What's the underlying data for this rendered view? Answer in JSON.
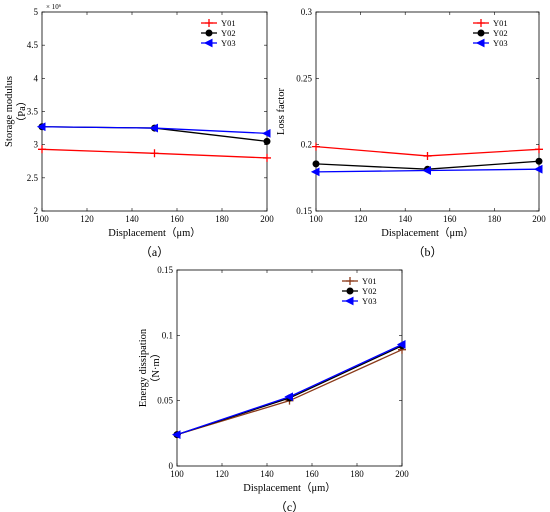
{
  "chart_data": [
    {
      "type": "line",
      "caption": "（a）",
      "xlabel": "Displacement（μm）",
      "ylabel": "Storage modulus",
      "ylabel_unit": "（Pa）",
      "y_exponent": "× 10⁶",
      "xlim": [
        100,
        200
      ],
      "ylim": [
        2,
        5
      ],
      "xticks": [
        "100",
        "120",
        "140",
        "160",
        "180",
        "200"
      ],
      "yticks": [
        "2",
        "2.5",
        "3",
        "3.5",
        "4",
        "4.5",
        "5"
      ],
      "x": [
        100,
        150,
        200
      ],
      "series": [
        {
          "name": "Y01",
          "color": "#ff0000",
          "marker": "plus",
          "values": [
            2.93,
            2.87,
            2.8
          ]
        },
        {
          "name": "Y02",
          "color": "#000000",
          "marker": "circle",
          "values": [
            3.27,
            3.25,
            3.05
          ]
        },
        {
          "name": "Y03",
          "color": "#0000ff",
          "marker": "triangle-left",
          "values": [
            3.27,
            3.25,
            3.17
          ]
        }
      ],
      "legend": "top-right",
      "grid": false
    },
    {
      "type": "line",
      "caption": "（b）",
      "xlabel": "Displacement（μm）",
      "ylabel": "Loss factor",
      "xlim": [
        100,
        200
      ],
      "ylim": [
        0.15,
        0.3
      ],
      "xticks": [
        "100",
        "120",
        "140",
        "160",
        "180",
        "200"
      ],
      "yticks": [
        "0.15",
        "0.2",
        "0.25",
        "0.3"
      ],
      "x": [
        100,
        150,
        200
      ],
      "series": [
        {
          "name": "Y01",
          "color": "#ff0000",
          "marker": "plus",
          "values": [
            0.1985,
            0.1915,
            0.1965
          ]
        },
        {
          "name": "Y02",
          "color": "#000000",
          "marker": "circle",
          "values": [
            0.1855,
            0.1815,
            0.1875
          ]
        },
        {
          "name": "Y03",
          "color": "#0000ff",
          "marker": "triangle-left",
          "values": [
            0.1795,
            0.1805,
            0.1815
          ]
        }
      ],
      "legend": "top-right",
      "grid": false
    },
    {
      "type": "line",
      "caption": "（c）",
      "xlabel": "Displacement（μm）",
      "ylabel": "Energy dissipation",
      "ylabel_unit": "（N·m）",
      "xlim": [
        100,
        200
      ],
      "ylim": [
        0,
        0.15
      ],
      "xticks": [
        "100",
        "120",
        "140",
        "160",
        "180",
        "200"
      ],
      "yticks": [
        "0",
        "0.05",
        "0.1",
        "0.15"
      ],
      "x": [
        100,
        150,
        200
      ],
      "series": [
        {
          "name": "Y01",
          "color": "#8b3a1a",
          "marker": "plus",
          "values": [
            0.024,
            0.05,
            0.089
          ]
        },
        {
          "name": "Y02",
          "color": "#000000",
          "marker": "circle",
          "values": [
            0.024,
            0.052,
            0.092
          ]
        },
        {
          "name": "Y03",
          "color": "#0000ff",
          "marker": "triangle-left",
          "values": [
            0.024,
            0.053,
            0.093
          ]
        }
      ],
      "legend": "top-right",
      "grid": false
    }
  ]
}
